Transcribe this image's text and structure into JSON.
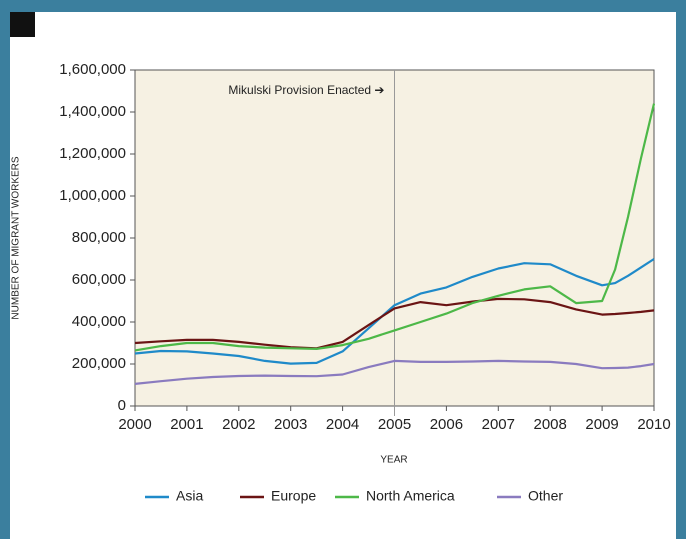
{
  "chart_data": {
    "type": "line",
    "annotation": {
      "text": "Mikulski Provision Enacted ➔",
      "x": 2005
    },
    "x_label": "YEAR",
    "y_label": "NUMBER OF MIGRANT WORKERS",
    "x": [
      2000,
      2000.5,
      2001,
      2001.5,
      2002,
      2002.5,
      2003,
      2003.5,
      2004,
      2004.5,
      2005,
      2005.5,
      2006,
      2006.5,
      2007,
      2007.5,
      2008,
      2008.5,
      2009,
      2009.25,
      2009.5,
      2009.75,
      2010
    ],
    "series": [
      {
        "name": "Asia",
        "color": "#1f8ac9",
        "values": [
          250000,
          262000,
          260000,
          250000,
          238000,
          215000,
          202000,
          205000,
          260000,
          370000,
          480000,
          535000,
          565000,
          615000,
          655000,
          680000,
          675000,
          620000,
          575000,
          585000,
          620000,
          660000,
          700000
        ]
      },
      {
        "name": "Europe",
        "color": "#6b1414",
        "values": [
          300000,
          308000,
          315000,
          315000,
          305000,
          292000,
          280000,
          275000,
          305000,
          385000,
          465000,
          495000,
          480000,
          497000,
          510000,
          508000,
          495000,
          460000,
          435000,
          438000,
          443000,
          448000,
          455000
        ]
      },
      {
        "name": "North America",
        "color": "#4db848",
        "values": [
          265000,
          285000,
          300000,
          300000,
          285000,
          278000,
          275000,
          272000,
          290000,
          320000,
          360000,
          400000,
          440000,
          490000,
          525000,
          555000,
          570000,
          490000,
          500000,
          650000,
          900000,
          1180000,
          1440000
        ]
      },
      {
        "name": "Other",
        "color": "#8a7bbf",
        "values": [
          105000,
          118000,
          130000,
          138000,
          143000,
          145000,
          143000,
          142000,
          150000,
          185000,
          215000,
          210000,
          210000,
          212000,
          215000,
          212000,
          210000,
          200000,
          180000,
          181000,
          183000,
          190000,
          200000
        ]
      }
    ],
    "xlim": [
      2000,
      2010
    ],
    "xticks": [
      2000,
      2001,
      2002,
      2003,
      2004,
      2005,
      2006,
      2007,
      2008,
      2009,
      2010
    ],
    "ylim": [
      0,
      1600000
    ],
    "yticks": [
      0,
      {
        "value": 200000,
        "label": "200,000"
      },
      {
        "value": 400000,
        "label": "400,000"
      },
      {
        "value": 600000,
        "label": "600,000"
      },
      {
        "value": 800000,
        "label": "800,000"
      },
      {
        "value": 1000000,
        "label": "1,000,000"
      },
      {
        "value": 1200000,
        "label": "1,200,000"
      },
      {
        "value": 1400000,
        "label": "1,400,000"
      },
      {
        "value": 1600000,
        "label": "1,600,000"
      }
    ],
    "grid": false
  }
}
